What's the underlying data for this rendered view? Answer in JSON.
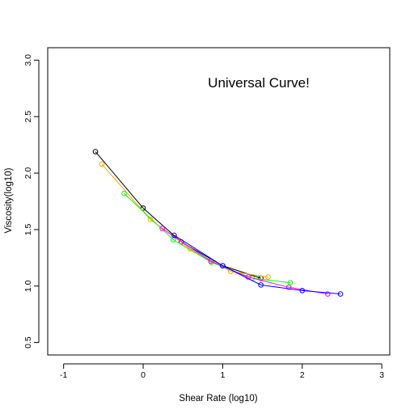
{
  "chart_data": {
    "type": "line",
    "title": "",
    "xlabel": "Shear Rate (log10)",
    "ylabel": "Viscosity(log10)",
    "xlim": [
      -1.2,
      3.1
    ],
    "ylim": [
      0.39,
      3.11
    ],
    "x_ticks": [
      -1,
      0,
      1,
      2,
      3
    ],
    "y_ticks": [
      0.5,
      1.0,
      1.5,
      2.0,
      2.5,
      3.0
    ],
    "x_tick_labels": [
      "-1",
      "0",
      "1",
      "2",
      "3"
    ],
    "y_tick_labels": [
      "0.5",
      "1.0",
      "1.5",
      "2.0",
      "2.5",
      "3.0"
    ],
    "annotation": "Universal Curve!",
    "grid": false,
    "legend": "none",
    "series": [
      {
        "color": "#000000",
        "x": [
          -0.6,
          0.0,
          0.48,
          1.0,
          1.48
        ],
        "y": [
          2.19,
          1.69,
          1.39,
          1.18,
          1.07
        ]
      },
      {
        "color": "#ffa500",
        "x": [
          -0.52,
          0.09,
          0.59,
          1.1,
          1.57
        ],
        "y": [
          2.08,
          1.59,
          1.33,
          1.13,
          1.08
        ]
      },
      {
        "color": "#00ff00",
        "x": [
          -0.24,
          0.38,
          0.86,
          1.37,
          1.85
        ],
        "y": [
          1.82,
          1.41,
          1.21,
          1.07,
          1.03
        ]
      },
      {
        "color": "#ff00ff",
        "x": [
          0.24,
          0.85,
          1.32,
          1.83,
          2.32
        ],
        "y": [
          1.51,
          1.22,
          1.08,
          0.99,
          0.93
        ]
      },
      {
        "color": "#0000ff",
        "x": [
          0.39,
          1.0,
          1.48,
          2.0,
          2.48
        ],
        "y": [
          1.45,
          1.18,
          1.01,
          0.96,
          0.93
        ]
      }
    ]
  }
}
